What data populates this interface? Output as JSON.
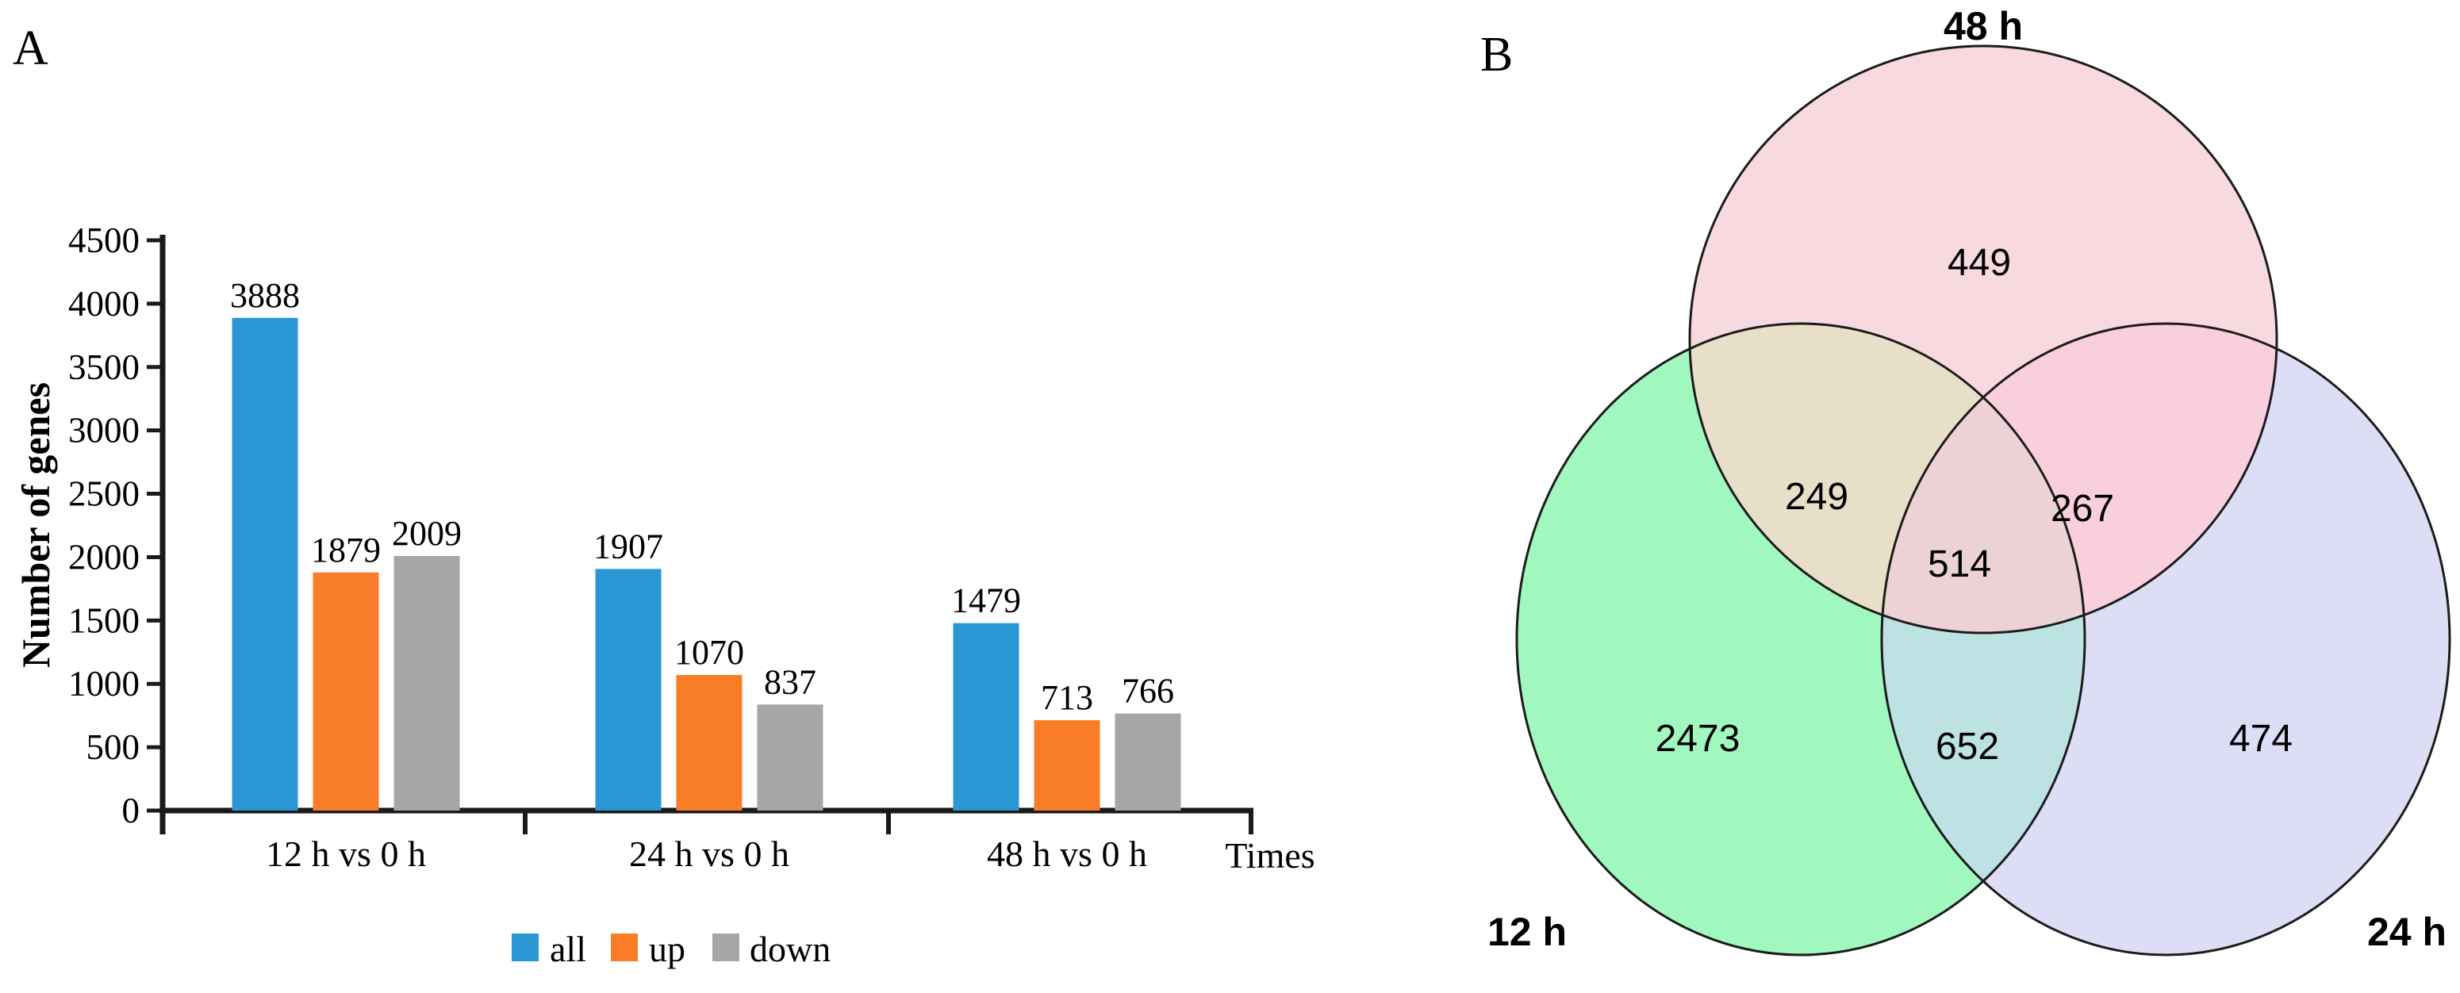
{
  "panels": [
    {
      "letter": "A"
    },
    {
      "letter": "B"
    }
  ],
  "chart_data": [
    {
      "type": "bar",
      "panel": "A",
      "title": "",
      "categories": [
        "12 h vs 0 h",
        "24 h vs 0 h",
        "48 h vs 0 h"
      ],
      "series": [
        {
          "name": "all",
          "color": "#2997D4",
          "values": [
            3888,
            1907,
            1479
          ]
        },
        {
          "name": "up",
          "color": "#F87D26",
          "values": [
            1879,
            1070,
            713
          ]
        },
        {
          "name": "down",
          "color": "#A6A6A6",
          "values": [
            2009,
            837,
            766
          ]
        }
      ],
      "ylabel": "Number of genes",
      "xlabel": "Times",
      "ylim": [
        0,
        4500
      ],
      "yticks": [
        0,
        500,
        1000,
        1500,
        2000,
        2500,
        3000,
        3500,
        4000,
        4500
      ],
      "grid": false,
      "bar_labels": true,
      "legend_position": "bottom",
      "legend": [
        "all",
        "up",
        "down"
      ],
      "axis_color": "#1A1A1A"
    },
    {
      "type": "venn",
      "panel": "B",
      "sets": [
        "12 h",
        "24 h",
        "48 h"
      ],
      "regions": {
        "only_12h": 2473,
        "only_24h": 474,
        "only_48h": 449,
        "i_12h_48h": 249,
        "i_24h_48h": 267,
        "i_12h_24h": 652,
        "i_all_three": 514
      },
      "colors": {
        "fill_12h": "#A0F8BE",
        "fill_24h": "#DEDDF6",
        "fill_48h": "#F7D9DF",
        "overlap_12_48": "#E7DFC7",
        "overlap_24_48": "#FACFDD",
        "overlap_12_24": "#BDE2E3",
        "overlap_all": "#EDD2D5",
        "outline": "#1C1C1C"
      }
    }
  ]
}
